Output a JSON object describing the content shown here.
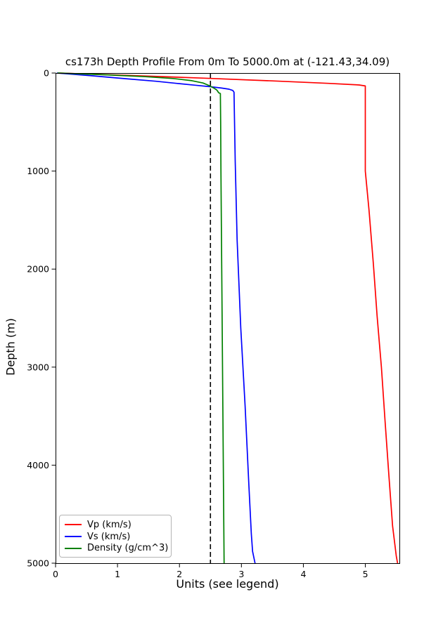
{
  "chart_data": {
    "type": "line",
    "title": "cs173h Depth Profile From 0m To 5000.0m at (-121.43,34.09)",
    "xlabel": "Units (see legend)",
    "ylabel": "Depth (m)",
    "xlim": [
      0,
      5.55
    ],
    "ylim": [
      0,
      5000
    ],
    "y_axis_inverted": true,
    "xticks": [
      0,
      1,
      2,
      3,
      4,
      5
    ],
    "yticks": [
      0,
      1000,
      2000,
      3000,
      4000,
      5000
    ],
    "grid": false,
    "legend_position": "lower left",
    "reference_line": {
      "x": 2.5,
      "style": "dashed",
      "color": "#000000"
    },
    "series": [
      {
        "name": "Vp (km/s)",
        "color": "#ff0000",
        "points": [
          [
            0.05,
            0
          ],
          [
            1.2,
            25
          ],
          [
            2.4,
            52
          ],
          [
            3.5,
            80
          ],
          [
            4.4,
            105
          ],
          [
            4.9,
            122
          ],
          [
            5.0,
            132
          ],
          [
            5.0,
            1000
          ],
          [
            5.06,
            1400
          ],
          [
            5.13,
            1950
          ],
          [
            5.19,
            2480
          ],
          [
            5.26,
            3000
          ],
          [
            5.32,
            3560
          ],
          [
            5.38,
            4100
          ],
          [
            5.44,
            4620
          ],
          [
            5.5,
            4930
          ],
          [
            5.52,
            5000
          ]
        ]
      },
      {
        "name": "Vs (km/s)",
        "color": "#0000ff",
        "points": [
          [
            0.03,
            0
          ],
          [
            0.55,
            26
          ],
          [
            1.12,
            57
          ],
          [
            1.62,
            84
          ],
          [
            1.95,
            105
          ],
          [
            2.25,
            124
          ],
          [
            2.5,
            140
          ],
          [
            2.68,
            153
          ],
          [
            2.8,
            165
          ],
          [
            2.86,
            178
          ],
          [
            2.88,
            195
          ],
          [
            2.9,
            900
          ],
          [
            2.93,
            1700
          ],
          [
            2.99,
            2600
          ],
          [
            3.06,
            3400
          ],
          [
            3.12,
            4200
          ],
          [
            3.16,
            4700
          ],
          [
            3.18,
            4880
          ],
          [
            3.22,
            5000
          ]
        ]
      },
      {
        "name": "Density (g/cm^3)",
        "color": "#008000",
        "points": [
          [
            0.04,
            0
          ],
          [
            0.8,
            18
          ],
          [
            1.45,
            37
          ],
          [
            1.9,
            56
          ],
          [
            2.2,
            78
          ],
          [
            2.38,
            102
          ],
          [
            2.48,
            128
          ],
          [
            2.55,
            152
          ],
          [
            2.6,
            172
          ],
          [
            2.62,
            188
          ],
          [
            2.63,
            200
          ],
          [
            2.66,
            210
          ],
          [
            2.665,
            500
          ],
          [
            2.67,
            1000
          ],
          [
            2.68,
            1800
          ],
          [
            2.69,
            2600
          ],
          [
            2.7,
            3400
          ],
          [
            2.71,
            4200
          ],
          [
            2.72,
            5000
          ]
        ]
      }
    ]
  }
}
